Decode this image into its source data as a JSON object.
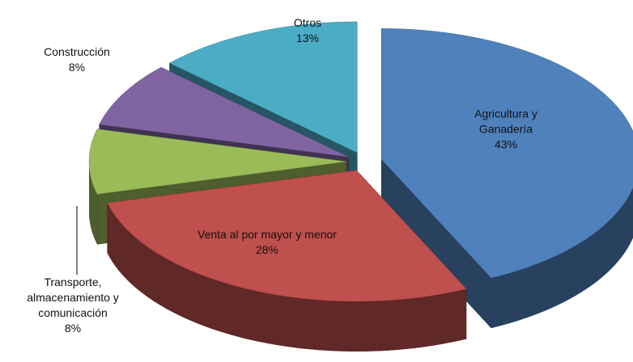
{
  "chart_data": {
    "type": "pie",
    "categories": [
      "Agricultura y Ganadería",
      "Venta al por mayor y menor",
      "Transporte, almacenamiento y comunicación",
      "Construcción",
      "Otros"
    ],
    "values": [
      43,
      28,
      8,
      8,
      13
    ],
    "value_labels": [
      "43%",
      "28%",
      "8%",
      "8%",
      "13%"
    ],
    "colors": [
      "#4f81bd",
      "#c0504d",
      "#9bbb59",
      "#8064a2",
      "#4bacc6"
    ]
  }
}
